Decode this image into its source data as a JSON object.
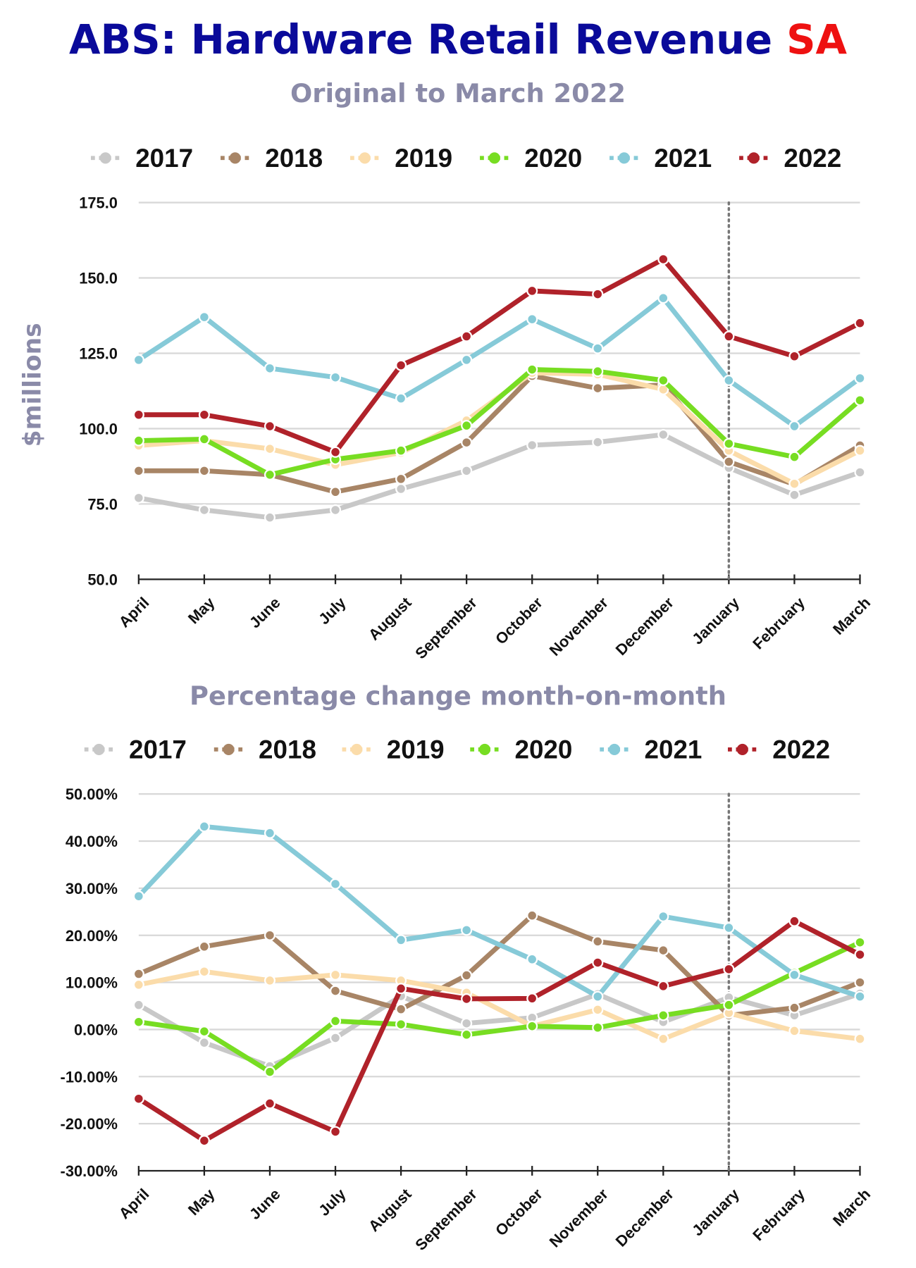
{
  "title": {
    "main": "ABS: Hardware Retail Revenue",
    "suffix": "SA",
    "main_color": "#0a0a9a",
    "suffix_color": "#ee1111"
  },
  "chart_data": [
    {
      "type": "line",
      "title": "Original to March 2022",
      "ylabel": "$millions",
      "xlabel": "",
      "categories": [
        "April",
        "May",
        "June",
        "July",
        "August",
        "September",
        "October",
        "November",
        "December",
        "January",
        "February",
        "March"
      ],
      "ylim": [
        50,
        175
      ],
      "yticks": [
        "50.0",
        "75.0",
        "100.0",
        "125.0",
        "150.0",
        "175.0"
      ],
      "grid": true,
      "legend": "top",
      "vline_at": "January",
      "series": [
        {
          "name": "2017",
          "color": "#c8c8c8",
          "values": [
            77,
            73,
            70.5,
            73,
            80,
            86,
            94.5,
            95.5,
            98,
            87,
            78,
            85.5
          ]
        },
        {
          "name": "2018",
          "color": "#a88566",
          "values": [
            86,
            86,
            84.7,
            79,
            83.3,
            95.4,
            117.5,
            113.4,
            114.5,
            89,
            81.5,
            94.4
          ]
        },
        {
          "name": "2019",
          "color": "#fbdcaa",
          "values": [
            94.4,
            96,
            93.3,
            88,
            92,
            102.7,
            118.5,
            118,
            113,
            92.7,
            81.7,
            92.7
          ]
        },
        {
          "name": "2020",
          "color": "#77dd22",
          "values": [
            96,
            96.5,
            84.7,
            89.8,
            92.7,
            101,
            119.6,
            119,
            116,
            95,
            90.6,
            109.4
          ]
        },
        {
          "name": "2021",
          "color": "#86cad8",
          "values": [
            122.8,
            137,
            120,
            117,
            110,
            122.8,
            136.3,
            126.6,
            143.3,
            116,
            100.8,
            116.7
          ]
        },
        {
          "name": "2022",
          "color": "#b0222a",
          "values": [
            104.6,
            104.6,
            100.8,
            92.2,
            121,
            130.6,
            145.7,
            144.6,
            156.2,
            130.6,
            124,
            135
          ]
        }
      ]
    },
    {
      "type": "line",
      "title": "Percentage change month-on-month",
      "xlabel": "",
      "ylabel": "",
      "categories": [
        "April",
        "May",
        "June",
        "July",
        "August",
        "September",
        "October",
        "November",
        "December",
        "January",
        "February",
        "March"
      ],
      "ylim": [
        -30,
        50
      ],
      "yticks": [
        "-30.00%",
        "-20.00%",
        "-10.00%",
        "0.00%",
        "10.00%",
        "20.00%",
        "30.00%",
        "40.00%",
        "50.00%"
      ],
      "grid": true,
      "legend": "top",
      "vline_at": "January",
      "series": [
        {
          "name": "2017",
          "color": "#c8c8c8",
          "values": [
            5.2,
            -2.8,
            -7.8,
            -1.8,
            7.1,
            1.3,
            2.5,
            7.5,
            1.6,
            6.8,
            3,
            7.6
          ]
        },
        {
          "name": "2018",
          "color": "#a88566",
          "values": [
            11.8,
            17.6,
            20,
            8.2,
            4.3,
            11.5,
            24.2,
            18.7,
            16.8,
            3,
            4.6,
            10
          ]
        },
        {
          "name": "2019",
          "color": "#fbdcaa",
          "values": [
            9.5,
            12.3,
            10.4,
            11.6,
            10.4,
            7.8,
            0.7,
            4.2,
            -2,
            3.5,
            -0.3,
            -2
          ]
        },
        {
          "name": "2020",
          "color": "#77dd22",
          "values": [
            1.6,
            -0.4,
            -9,
            1.8,
            1.1,
            -1.1,
            0.7,
            0.4,
            3,
            5.2,
            12,
            18.5
          ]
        },
        {
          "name": "2021",
          "color": "#86cad8",
          "values": [
            28.3,
            43.1,
            41.7,
            30.9,
            19,
            21.1,
            14.9,
            7,
            24,
            21.6,
            11.6,
            7
          ]
        },
        {
          "name": "2022",
          "color": "#b0222a",
          "values": [
            -14.7,
            -23.6,
            -15.7,
            -21.7,
            8.7,
            6.5,
            6.6,
            14.2,
            9.2,
            12.8,
            23,
            15.9
          ]
        }
      ]
    }
  ]
}
